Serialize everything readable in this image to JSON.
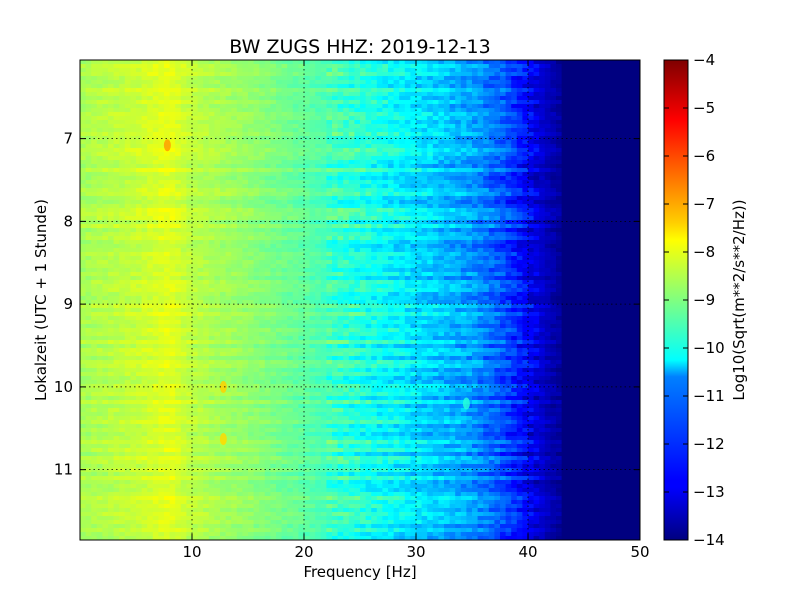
{
  "chart_data": {
    "type": "heatmap",
    "title": "BW ZUGS HHZ: 2019-12-13",
    "xlabel": "Frequency [Hz]",
    "ylabel": "Lokalzeit (UTC + 1 Stunde)",
    "xlim": [
      0,
      50
    ],
    "ylim": [
      6.05,
      11.85
    ],
    "y_inverted": true,
    "xticks": [
      10,
      20,
      30,
      40,
      50
    ],
    "xtick_labels": [
      "10",
      "20",
      "30",
      "40",
      "50"
    ],
    "yticks": [
      7,
      8,
      9,
      10,
      11
    ],
    "ytick_labels": [
      "7",
      "8",
      "9",
      "10",
      "11"
    ],
    "grid": true,
    "colormap": "jet",
    "colorbar": {
      "label": "Log10(Sqrt(m**2/s**2/Hz))",
      "range": [
        -14,
        -4
      ],
      "ticks": [
        -4,
        -5,
        -6,
        -7,
        -8,
        -9,
        -10,
        -11,
        -12,
        -13,
        -14
      ],
      "tick_labels": [
        "−4",
        "−5",
        "−6",
        "−7",
        "−8",
        "−9",
        "−10",
        "−11",
        "−12",
        "−13",
        "−14"
      ]
    },
    "spectrum_profile": {
      "frequency_hz": [
        0,
        5,
        8,
        10,
        15,
        20,
        25,
        30,
        35,
        38,
        40,
        42,
        44,
        50
      ],
      "value": [
        -8.6,
        -8.3,
        -8.0,
        -8.4,
        -8.8,
        -9.3,
        -9.9,
        -10.5,
        -11.2,
        -12.0,
        -12.8,
        -13.5,
        -14,
        -14
      ]
    },
    "features": [
      {
        "frequency_hz": 7.8,
        "time": 7.08,
        "value": -6.8
      },
      {
        "frequency_hz": 12.8,
        "time": 10.0,
        "value": -7.3
      },
      {
        "frequency_hz": 12.8,
        "time": 10.63,
        "value": -7.4
      },
      {
        "frequency_hz": 34.5,
        "time": 10.2,
        "value": -9.9
      }
    ]
  }
}
